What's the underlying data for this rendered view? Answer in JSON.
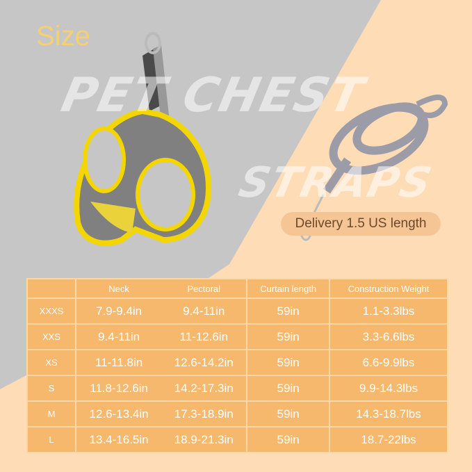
{
  "title": "Size",
  "watermark": {
    "line1": "PET CHEST",
    "line2": "STRAPS"
  },
  "delivery_label": "Delivery 1.5 US length",
  "colors": {
    "left_bg": "#c6c6c6",
    "right_bg": "#fddcb6",
    "table_bg": "#f6b86c",
    "title": "#f7cf73",
    "harness_trim": "#f3d600"
  },
  "images": {
    "harness": "yellow-gray-mesh-harness",
    "leash": "gray-leash-with-clip"
  },
  "table": {
    "headers": [
      "",
      "Neck",
      "Pectoral",
      "Curtain length",
      "Construction Weight"
    ],
    "rows": [
      [
        "XXXS",
        "7.9-9.4in",
        "9.4-11in",
        "59in",
        "1.1-3.3lbs"
      ],
      [
        "XXS",
        "9.4-11in",
        "11-12.6in",
        "59in",
        "3.3-6.6lbs"
      ],
      [
        "XS",
        "11-11.8in",
        "12.6-14.2in",
        "59in",
        "6.6-9.9lbs"
      ],
      [
        "S",
        "11.8-12.6in",
        "14.2-17.3in",
        "59in",
        "9.9-14.3lbs"
      ],
      [
        "M",
        "12.6-13.4in",
        "17.3-18.9in",
        "59in",
        "14.3-18.7lbs"
      ],
      [
        "L",
        "13.4-16.5in",
        "18.9-21.3in",
        "59in",
        "18.7-22lbs"
      ]
    ]
  }
}
